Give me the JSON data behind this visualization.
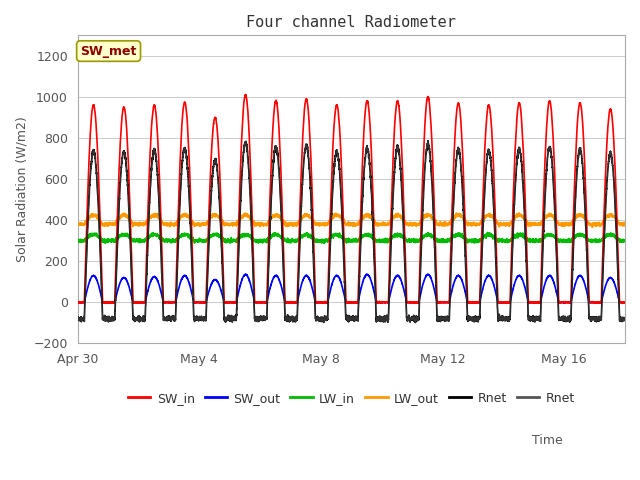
{
  "title": "Four channel Radiometer",
  "xlabel": "Time",
  "ylabel": "Solar Radiation (W/m2)",
  "ylim": [
    -200,
    1300
  ],
  "yticks": [
    -200,
    0,
    200,
    400,
    600,
    800,
    1000,
    1200
  ],
  "annotation_text": "SW_met",
  "annotation_bg": "#FFFFCC",
  "annotation_border": "#999900",
  "plot_bg": "#FFFFFF",
  "fig_bg": "#FFFFFF",
  "grid_color": "#CCCCCC",
  "series": {
    "SW_in": {
      "color": "#FF0000",
      "lw": 1.2
    },
    "SW_out": {
      "color": "#0000FF",
      "lw": 1.2
    },
    "LW_in": {
      "color": "#00BB00",
      "lw": 1.2
    },
    "LW_out": {
      "color": "#FF9900",
      "lw": 1.2
    },
    "Rnet": {
      "color": "#000000",
      "lw": 1.2
    },
    "Rnet2": {
      "color": "#555555",
      "lw": 1.2
    }
  },
  "num_days": 18,
  "x_tick_positions": [
    0,
    4,
    8,
    12,
    16
  ],
  "x_tick_labels": [
    "Apr 30",
    "May 4",
    "May 8",
    "May 12",
    "May 16"
  ],
  "sw_in_peaks": [
    960,
    950,
    960,
    975,
    900,
    1010,
    980,
    990,
    960,
    980,
    980,
    1000,
    970,
    960,
    970,
    980,
    970,
    940
  ],
  "sw_out_peaks": [
    130,
    120,
    125,
    130,
    110,
    135,
    130,
    130,
    130,
    135,
    130,
    135,
    130,
    130,
    130,
    130,
    130,
    120
  ],
  "LW_in_base": 300,
  "LW_out_base": 380,
  "sun_start": 0.22,
  "sun_end": 0.82
}
